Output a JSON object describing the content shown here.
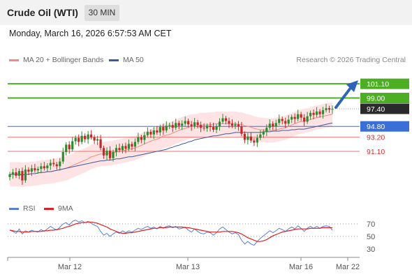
{
  "header": {
    "title": "Crude Oil (WTI)",
    "timeframe": "30 MIN"
  },
  "timestamp": "Monday, March 16, 2026 6:57:53 AM CET",
  "legend": {
    "ma20": {
      "label": "MA 20 + Bollinger Bands",
      "color": "#f28b82"
    },
    "ma50": {
      "label": "MA 50",
      "color": "#3d5a9e"
    }
  },
  "credit": "Research © 2026 Trading Central",
  "rsi_legend": {
    "rsi": {
      "label": "RSI",
      "color": "#5b7fd6"
    },
    "ma9": {
      "label": "9MA",
      "color": "#e02020"
    }
  },
  "colors": {
    "up": "#2e8b2e",
    "down": "#c62828",
    "resistance": "#4caf22",
    "pivot": "#3a6fd8",
    "support": "#e57373",
    "bands": "#fde3e3"
  },
  "chart_data": [
    {
      "type": "candlestick",
      "ylim": [
        84.6,
        103.8
      ],
      "x_ticks": [
        "Mar 12",
        "Mar 13",
        "Mar 16",
        "Mar 22"
      ],
      "levels": [
        {
          "label": "101.10",
          "value": 101.1,
          "kind": "resistance"
        },
        {
          "label": "99.00",
          "value": 99.0,
          "kind": "resistance"
        },
        {
          "label": "97.40",
          "value": 97.4,
          "kind": "last"
        },
        {
          "label": "94.80",
          "value": 94.8,
          "kind": "pivot"
        },
        {
          "label": "93.20",
          "value": 93.2,
          "kind": "support"
        },
        {
          "label": "91.10",
          "value": 91.1,
          "kind": "support"
        }
      ],
      "closes": [
        87.7,
        88.0,
        87.5,
        88.2,
        86.8,
        88.4,
        88.1,
        88.6,
        88.3,
        88.5,
        88.9,
        88.6,
        89.0,
        89.4,
        89.2,
        88.9,
        89.6,
        91.0,
        92.1,
        91.4,
        92.6,
        93.1,
        92.5,
        93.4,
        92.9,
        93.6,
        93.2,
        92.7,
        92.9,
        91.6,
        90.5,
        91.2,
        90.1,
        91.0,
        91.6,
        91.3,
        91.9,
        91.5,
        92.2,
        91.8,
        92.5,
        93.2,
        92.8,
        93.5,
        94.0,
        93.6,
        94.2,
        93.9,
        94.7,
        94.2,
        94.9,
        95.0,
        94.6,
        95.3,
        94.9,
        95.2,
        95.6,
        95.1,
        94.8,
        95.4,
        95.0,
        94.6,
        94.5,
        94.9,
        94.7,
        94.3,
        94.8,
        95.5,
        96.0,
        95.6,
        95.2,
        94.9,
        95.1,
        94.8,
        93.7,
        92.8,
        93.3,
        92.7,
        92.4,
        93.1,
        93.6,
        94.0,
        94.6,
        95.2,
        94.8,
        95.3,
        95.9,
        95.6,
        95.2,
        95.8,
        96.2,
        95.9,
        96.6,
        96.1,
        95.5,
        96.3,
        96.8,
        96.5,
        97.0,
        96.6,
        97.2,
        97.5,
        97.3,
        97.4
      ],
      "ma20": [
        87.7,
        87.7,
        87.7,
        87.7,
        87.6,
        87.7,
        87.7,
        87.8,
        87.8,
        87.9,
        88.0,
        88.0,
        88.1,
        88.1,
        88.2,
        88.3,
        88.4,
        88.5,
        88.6,
        88.8,
        89.0,
        89.2,
        89.4,
        89.6,
        89.8,
        90.0,
        90.3,
        90.4,
        90.6,
        90.7,
        90.7,
        90.8,
        90.8,
        90.9,
        91.0,
        91.1,
        91.2,
        91.3,
        91.4,
        91.5,
        91.6,
        91.8,
        92.0,
        92.2,
        92.4,
        92.6,
        92.8,
        92.9,
        93.1,
        93.4,
        93.5,
        93.6,
        93.8,
        94.0,
        94.2,
        94.4,
        94.5,
        94.7,
        94.8,
        94.8,
        94.9,
        95.0,
        95.0,
        95.0,
        95.1,
        95.1,
        95.2,
        95.2,
        95.2,
        95.2,
        95.2,
        95.2,
        95.2,
        95.1,
        95.1,
        94.9,
        94.8,
        94.7,
        94.5,
        94.4,
        94.3,
        94.3,
        94.2,
        94.2,
        94.2,
        94.3,
        94.4,
        94.5,
        94.6,
        94.8,
        95.0,
        95.2,
        95.4,
        95.5,
        95.6,
        95.7,
        95.8,
        96.0,
        96.1,
        96.2,
        96.3,
        96.4,
        96.5,
        96.6
      ],
      "ma50": [
        87.7,
        87.7,
        87.7,
        87.7,
        87.6,
        87.7,
        87.7,
        87.8,
        87.8,
        87.9,
        88.0,
        88.0,
        88.1,
        88.1,
        88.2,
        88.3,
        88.4,
        88.5,
        88.6,
        88.7,
        88.8,
        88.9,
        89.0,
        89.1,
        89.2,
        89.3,
        89.4,
        89.5,
        89.6,
        89.7,
        89.7,
        89.8,
        89.8,
        89.9,
        90.0,
        90.0,
        90.1,
        90.2,
        90.3,
        90.3,
        90.4,
        90.5,
        90.6,
        90.7,
        90.8,
        90.9,
        91.0,
        91.1,
        91.2,
        91.3,
        91.4,
        91.6,
        91.7,
        91.9,
        92.0,
        92.2,
        92.3,
        92.5,
        92.6,
        92.8,
        92.9,
        93.0,
        93.1,
        93.2,
        93.3,
        93.4,
        93.4,
        93.5,
        93.6,
        93.7,
        93.7,
        93.8,
        93.9,
        93.9,
        93.9,
        93.9,
        93.9,
        93.9,
        93.9,
        93.9,
        93.9,
        94.0,
        94.0,
        94.0,
        94.1,
        94.1,
        94.1,
        94.2,
        94.2,
        94.2,
        94.3,
        94.3,
        94.4,
        94.4,
        94.4,
        94.5,
        94.6,
        94.7,
        94.8,
        94.9,
        95.0,
        95.1,
        95.2,
        95.3
      ],
      "band_width": 1.8
    },
    {
      "type": "line",
      "ylim": [
        20,
        80
      ],
      "y_ticks": [
        70,
        50,
        30
      ],
      "rsi": [
        60,
        58,
        55,
        62,
        54,
        59,
        57,
        60,
        58,
        57,
        61,
        58,
        62,
        66,
        63,
        60,
        65,
        70,
        72,
        68,
        74,
        76,
        73,
        75,
        72,
        74,
        71,
        68,
        66,
        58,
        52,
        55,
        50,
        54,
        57,
        55,
        59,
        56,
        59,
        57,
        60,
        63,
        61,
        64,
        66,
        63,
        65,
        62,
        66,
        63,
        66,
        67,
        64,
        66,
        62,
        63,
        65,
        60,
        57,
        62,
        58,
        55,
        54,
        57,
        56,
        52,
        56,
        62,
        65,
        61,
        57,
        54,
        56,
        53,
        44,
        38,
        42,
        38,
        36,
        42,
        47,
        51,
        55,
        59,
        56,
        59,
        63,
        61,
        58,
        62,
        65,
        62,
        67,
        63,
        58,
        63,
        66,
        63,
        66,
        63,
        66,
        67,
        66,
        60
      ],
      "ma9": [
        60,
        59,
        58,
        58,
        57,
        57,
        57,
        58,
        58,
        58,
        58,
        59,
        59,
        60,
        60,
        61,
        62,
        63,
        65,
        66,
        68,
        70,
        71,
        72,
        72,
        73,
        73,
        72,
        71,
        69,
        67,
        65,
        62,
        60,
        58,
        56,
        55,
        55,
        56,
        56,
        57,
        58,
        59,
        60,
        61,
        62,
        63,
        63,
        64,
        64,
        64,
        65,
        65,
        65,
        65,
        65,
        64,
        64,
        63,
        62,
        61,
        60,
        59,
        58,
        57,
        57,
        57,
        57,
        58,
        58,
        58,
        58,
        57,
        56,
        54,
        51,
        48,
        46,
        44,
        42,
        42,
        43,
        45,
        48,
        51,
        53,
        55,
        57,
        58,
        59,
        60,
        61,
        62,
        62,
        62,
        62,
        63,
        63,
        63,
        63,
        64,
        64,
        64,
        64
      ]
    }
  ]
}
